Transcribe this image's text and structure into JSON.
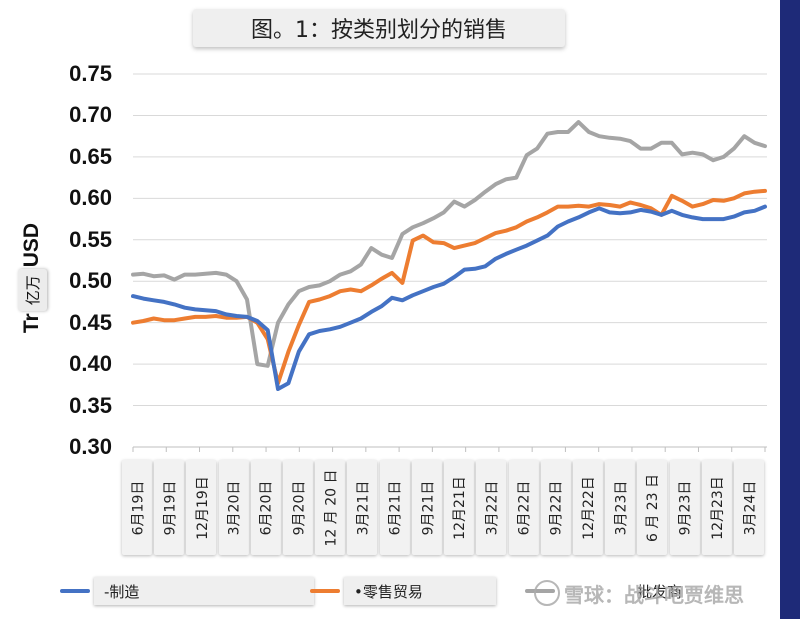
{
  "chart_data": {
    "type": "line",
    "title": "图。1：按类别划分的销售",
    "ylabel_prefix": "Tr",
    "ylabel_unit": "亿万",
    "ylabel_suffix": "USD",
    "ylim": [
      0.3,
      0.75
    ],
    "yticks": [
      "0.30",
      "0.35",
      "0.40",
      "0.45",
      "0.50",
      "0.55",
      "0.60",
      "0.65",
      "0.70",
      "0.75"
    ],
    "ytick_values": [
      0.3,
      0.35,
      0.4,
      0.45,
      0.5,
      0.55,
      0.6,
      0.65,
      0.7,
      0.75
    ],
    "xtick_labels": [
      "6月19日",
      "9月19日",
      "12月19日",
      "3月20日",
      "6月20日",
      "9月20日",
      "12 月 20 日",
      "3月21日",
      "6月21日",
      "9月21日",
      "12月21日",
      "3月22日",
      "6月22日",
      "9月22日",
      "12月22日",
      "3月23日",
      "6 月 23 日",
      "9月23日",
      "12月23日",
      "3月24日"
    ],
    "n_points": 62,
    "grid": true,
    "legend_position": "bottom",
    "series": [
      {
        "name": "-制造",
        "color": "#4472c4",
        "values": [
          0.482,
          0.479,
          0.477,
          0.475,
          0.472,
          0.468,
          0.466,
          0.465,
          0.464,
          0.46,
          0.458,
          0.457,
          0.452,
          0.441,
          0.37,
          0.377,
          0.415,
          0.436,
          0.44,
          0.442,
          0.445,
          0.45,
          0.455,
          0.463,
          0.47,
          0.48,
          0.477,
          0.483,
          0.488,
          0.493,
          0.497,
          0.505,
          0.514,
          0.515,
          0.518,
          0.527,
          0.533,
          0.538,
          0.543,
          0.549,
          0.555,
          0.566,
          0.572,
          0.577,
          0.583,
          0.588,
          0.583,
          0.582,
          0.583,
          0.586,
          0.584,
          0.58,
          0.585,
          0.58,
          0.577,
          0.575,
          0.575,
          0.575,
          0.578,
          0.583,
          0.585,
          0.59
        ]
      },
      {
        "name": "•零售贸易",
        "color": "#ed7d31",
        "values": [
          0.45,
          0.452,
          0.455,
          0.453,
          0.453,
          0.455,
          0.457,
          0.457,
          0.458,
          0.456,
          0.456,
          0.457,
          0.45,
          0.43,
          0.377,
          0.415,
          0.447,
          0.475,
          0.478,
          0.482,
          0.488,
          0.49,
          0.488,
          0.495,
          0.503,
          0.51,
          0.498,
          0.549,
          0.555,
          0.547,
          0.546,
          0.54,
          0.543,
          0.546,
          0.552,
          0.558,
          0.561,
          0.565,
          0.572,
          0.577,
          0.583,
          0.59,
          0.59,
          0.591,
          0.59,
          0.593,
          0.592,
          0.59,
          0.595,
          0.592,
          0.588,
          0.58,
          0.603,
          0.597,
          0.59,
          0.593,
          0.598,
          0.597,
          0.6,
          0.606,
          0.608,
          0.609
        ]
      },
      {
        "name": "批发商",
        "color": "#a5a5a5",
        "values": [
          0.508,
          0.509,
          0.506,
          0.507,
          0.502,
          0.508,
          0.508,
          0.509,
          0.51,
          0.508,
          0.5,
          0.478,
          0.4,
          0.398,
          0.45,
          0.472,
          0.488,
          0.493,
          0.495,
          0.5,
          0.508,
          0.512,
          0.52,
          0.54,
          0.532,
          0.528,
          0.557,
          0.565,
          0.57,
          0.576,
          0.583,
          0.596,
          0.59,
          0.598,
          0.608,
          0.617,
          0.623,
          0.625,
          0.652,
          0.66,
          0.678,
          0.68,
          0.68,
          0.692,
          0.68,
          0.675,
          0.673,
          0.672,
          0.669,
          0.66,
          0.66,
          0.667,
          0.667,
          0.653,
          0.655,
          0.653,
          0.646,
          0.65,
          0.66,
          0.675,
          0.667,
          0.663
        ]
      }
    ]
  },
  "watermark": {
    "text": "雪球：战斗吧贾维思"
  }
}
